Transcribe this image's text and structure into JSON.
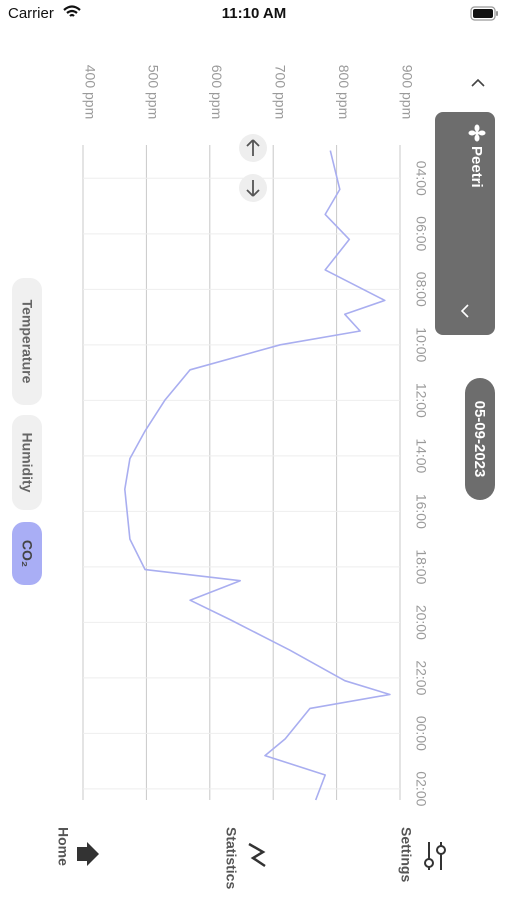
{
  "status_bar": {
    "carrier": "Carrier",
    "time": "11:10 AM"
  },
  "header": {
    "device": "Peetri",
    "date": "05-09-2023"
  },
  "chart_data": {
    "type": "line",
    "x": [
      3.0,
      4.4,
      5.3,
      6.2,
      7.3,
      8.4,
      8.9,
      9.5,
      10.0,
      10.9,
      12.0,
      13.1,
      14.1,
      15.2,
      17.0,
      18.1,
      18.5,
      19.2,
      19.9,
      21.0,
      22.1,
      22.6,
      23.1,
      24.2,
      24.8,
      25.5,
      26.4
    ],
    "values": [
      790,
      805,
      782,
      820,
      782,
      876,
      813,
      837,
      711,
      569,
      529,
      498,
      474,
      466,
      474,
      498,
      648,
      569,
      632,
      726,
      813,
      884,
      758,
      719,
      687,
      782,
      767
    ],
    "color": "#a9aef0",
    "xlim": [
      2.8,
      26.4
    ],
    "xticks": [
      {
        "value": 4,
        "label": "04:00"
      },
      {
        "value": 6,
        "label": "06:00"
      },
      {
        "value": 8,
        "label": "08:00"
      },
      {
        "value": 10,
        "label": "10:00"
      },
      {
        "value": 12,
        "label": "12:00"
      },
      {
        "value": 14,
        "label": "14:00"
      },
      {
        "value": 16,
        "label": "16:00"
      },
      {
        "value": 18,
        "label": "18:00"
      },
      {
        "value": 20,
        "label": "20:00"
      },
      {
        "value": 22,
        "label": "22:00"
      },
      {
        "value": 24,
        "label": "00:00"
      },
      {
        "value": 26,
        "label": "02:00"
      }
    ],
    "ylim": [
      400,
      900
    ],
    "yticks": [
      {
        "value": 400,
        "label": "400 ppm"
      },
      {
        "value": 500,
        "label": "500 ppm"
      },
      {
        "value": 600,
        "label": "600 ppm"
      },
      {
        "value": 700,
        "label": "700 ppm"
      },
      {
        "value": 800,
        "label": "800 ppm"
      },
      {
        "value": 900,
        "label": "900 ppm"
      }
    ],
    "grid": true
  },
  "metric_tabs": [
    "Temperature",
    "Humidity",
    "CO₂"
  ],
  "selected_tab": 2,
  "nav": [
    "Settings",
    "Statistics",
    "Home"
  ]
}
